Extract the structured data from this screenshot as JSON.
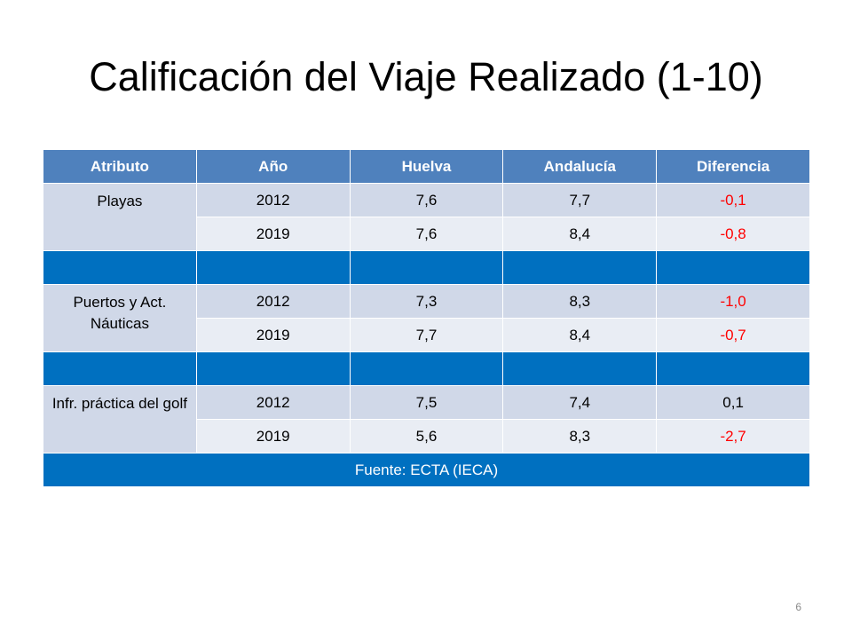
{
  "title": "Calificación del Viaje Realizado (1-10)",
  "table": {
    "headers": [
      "Atributo",
      "Año",
      "Huelva",
      "Andalucía",
      "Diferencia"
    ],
    "groups": [
      {
        "attribute": "Playas",
        "rows": [
          {
            "year": "2012",
            "huelva": "7,6",
            "andalucia": "7,7",
            "diferencia": "-0,1"
          },
          {
            "year": "2019",
            "huelva": "7,6",
            "andalucia": "8,4",
            "diferencia": "-0,8"
          }
        ]
      },
      {
        "attribute": "Puertos y Act. Náuticas",
        "rows": [
          {
            "year": "2012",
            "huelva": "7,3",
            "andalucia": "8,3",
            "diferencia": "-1,0"
          },
          {
            "year": "2019",
            "huelva": "7,7",
            "andalucia": "8,4",
            "diferencia": "-0,7"
          }
        ]
      },
      {
        "attribute": "Infr. práctica del golf",
        "rows": [
          {
            "year": "2012",
            "huelva": "7,5",
            "andalucia": "7,4",
            "diferencia": "0,1"
          },
          {
            "year": "2019",
            "huelva": "5,6",
            "andalucia": "8,3",
            "diferencia": "-2,7"
          }
        ]
      }
    ],
    "source": "Fuente: ECTA (IECA)"
  },
  "colors": {
    "header_bg": "#4f81bd",
    "separator_bg": "#0070c0",
    "row_dark": "#d0d8e8",
    "row_light": "#e9edf4",
    "negative_text": "#ff0000"
  },
  "page_number": "6"
}
